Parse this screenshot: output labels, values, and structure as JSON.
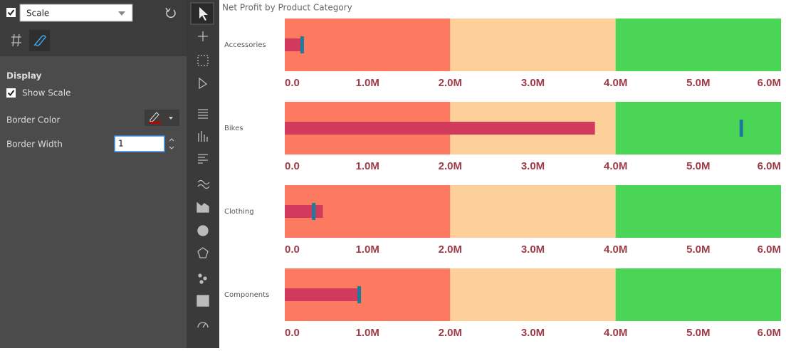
{
  "panel": {
    "dropdown": "Scale",
    "section": "Display",
    "show_scale": "Show Scale",
    "border_color": "Border Color",
    "border_width": "Border Width",
    "border_width_value": 1
  },
  "chart_data": {
    "type": "bullet",
    "title": "Net Profit by Product Category",
    "categories": [
      "Accessories",
      "Bikes",
      "Clothing",
      "Components"
    ],
    "values": [
      230000,
      3750000,
      460000,
      910000
    ],
    "targets": [
      210000,
      5520000,
      350000,
      900000
    ],
    "ranges": [
      2000000,
      4000000,
      6000000
    ],
    "range_colors": [
      "#fb7a60",
      "#fcd098",
      "#4bd556"
    ],
    "bar_color": "#d13a5c",
    "target_color": "#1d7b9b",
    "xlim": [
      0,
      6000000
    ],
    "xticks": [
      {
        "value": 0,
        "label": "0.0"
      },
      {
        "value": 1000000,
        "label": "1.0M"
      },
      {
        "value": 2000000,
        "label": "2.0M"
      },
      {
        "value": 3000000,
        "label": "3.0M"
      },
      {
        "value": 4000000,
        "label": "4.0M"
      },
      {
        "value": 5000000,
        "label": "5.0M"
      },
      {
        "value": 6000000,
        "label": "6.0M"
      }
    ]
  }
}
